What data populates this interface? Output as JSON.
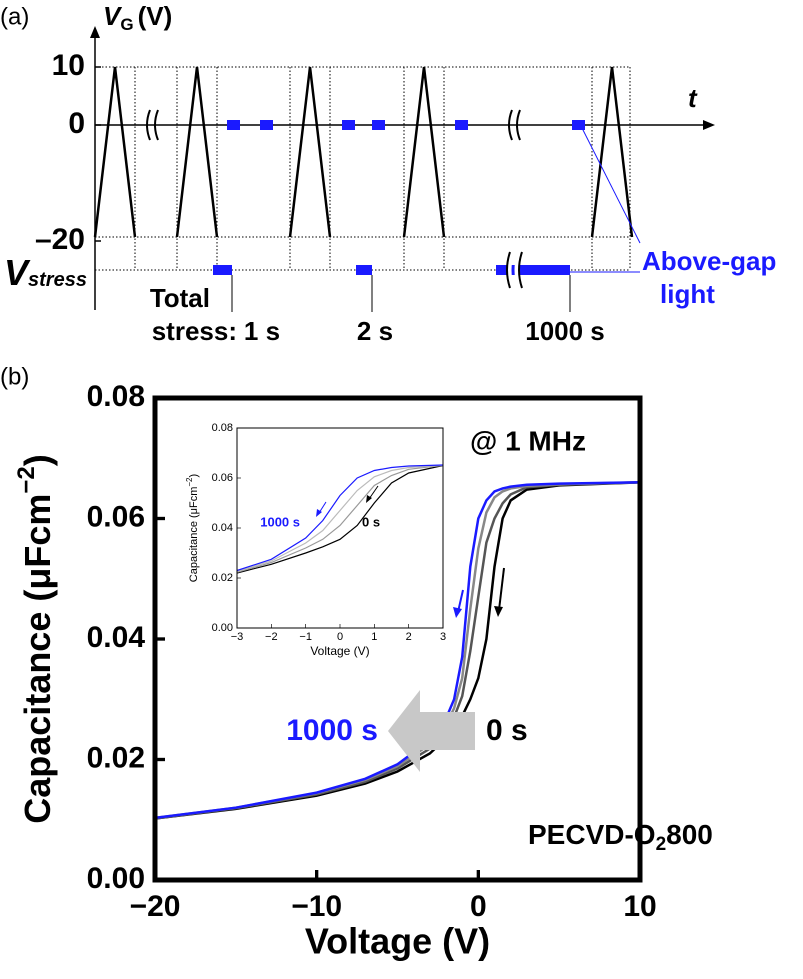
{
  "panel_a": {
    "label": "(a)",
    "axis_label": [
      "V",
      "G",
      "(V)"
    ],
    "yticks": [
      10,
      0,
      {
        "value": -20,
        "label": "–20"
      }
    ],
    "t_label": "t",
    "stress_label": [
      "V",
      "stress"
    ],
    "total_label": [
      "Total",
      "stress:"
    ],
    "stress_times": [
      "1 s",
      "2 s",
      "1000 s"
    ],
    "light_label": [
      "Above-gap",
      "light"
    ]
  },
  "panel_b": {
    "label": "(b)",
    "frequency": "@ 1 MHz",
    "sample": [
      "PECVD-O",
      "2",
      "800"
    ],
    "stressed_label": "1000 s",
    "initial_label": "0 s",
    "inset_stressed_label": "1000 s",
    "inset_initial_label": "0 s"
  },
  "chart_data": [
    {
      "type": "line",
      "xlabel": "Voltage (V)",
      "ylabel": [
        "Capacitance (μFcm",
        "−2",
        ")"
      ],
      "x": [
        -20,
        -15,
        -10,
        -7,
        -5,
        -3,
        -2,
        -1.5,
        -1,
        -0.5,
        0,
        0.5,
        1,
        1.5,
        2,
        3,
        5,
        10
      ],
      "series": [
        {
          "color": "#000000",
          "values": [
            0.0102,
            0.0118,
            0.014,
            0.016,
            0.018,
            0.021,
            0.0235,
            0.0252,
            0.0272,
            0.03,
            0.0335,
            0.04,
            0.052,
            0.06,
            0.063,
            0.0648,
            0.0655,
            0.066
          ]
        },
        {
          "color": "#555555",
          "values": [
            0.0102,
            0.0119,
            0.0142,
            0.0163,
            0.0185,
            0.0218,
            0.0248,
            0.027,
            0.0305,
            0.038,
            0.047,
            0.056,
            0.06,
            0.0625,
            0.064,
            0.0652,
            0.0656,
            0.066
          ]
        },
        {
          "color": "#888888",
          "values": [
            0.0103,
            0.012,
            0.0144,
            0.0166,
            0.0189,
            0.0225,
            0.0258,
            0.0285,
            0.0335,
            0.045,
            0.055,
            0.061,
            0.0635,
            0.0645,
            0.065,
            0.0654,
            0.0657,
            0.066
          ]
        },
        {
          "color": "#1a1aff",
          "values": [
            0.0103,
            0.012,
            0.0145,
            0.0168,
            0.0192,
            0.0232,
            0.0268,
            0.03,
            0.037,
            0.052,
            0.06,
            0.063,
            0.0645,
            0.065,
            0.0653,
            0.0656,
            0.0658,
            0.066
          ]
        }
      ],
      "xlim": [
        -20,
        10
      ],
      "ylim": [
        0,
        0.08
      ],
      "xticks": [
        {
          "value": -20,
          "label": "−20"
        },
        {
          "value": -10,
          "label": "−10"
        },
        0,
        10
      ],
      "yticks": [
        {
          "value": 0,
          "label": "0.00"
        },
        0.02,
        0.04,
        0.06,
        0.08
      ]
    },
    {
      "type": "line",
      "xlabel": "Voltage (V)",
      "ylabel": [
        "Capacitance (μFcm",
        "−2",
        ")"
      ],
      "x": [
        -3,
        -2,
        -1,
        -0.5,
        0,
        0.5,
        1,
        1.5,
        2,
        3
      ],
      "series": [
        {
          "color": "#000000",
          "values": [
            0.022,
            0.0255,
            0.03,
            0.0325,
            0.0355,
            0.041,
            0.05,
            0.058,
            0.062,
            0.065
          ]
        },
        {
          "color": "#999999",
          "values": [
            0.0223,
            0.0262,
            0.032,
            0.0355,
            0.041,
            0.049,
            0.057,
            0.061,
            0.0635,
            0.0651
          ]
        },
        {
          "color": "#bbbbbb",
          "values": [
            0.0226,
            0.0268,
            0.034,
            0.039,
            0.047,
            0.055,
            0.0605,
            0.063,
            0.0642,
            0.0651
          ]
        },
        {
          "color": "#1a1aff",
          "values": [
            0.023,
            0.0275,
            0.036,
            0.043,
            0.053,
            0.06,
            0.063,
            0.0642,
            0.0648,
            0.0652
          ]
        }
      ],
      "xlim": [
        -3,
        3
      ],
      "ylim": [
        0,
        0.08
      ],
      "xticks": [
        {
          "value": -3,
          "label": "−3"
        },
        {
          "value": -2,
          "label": "−2"
        },
        {
          "value": -1,
          "label": "−1"
        },
        0,
        1,
        2,
        3
      ],
      "yticks": [
        {
          "value": 0,
          "label": "0.00"
        },
        0.02,
        0.04,
        0.06,
        0.08
      ]
    }
  ]
}
